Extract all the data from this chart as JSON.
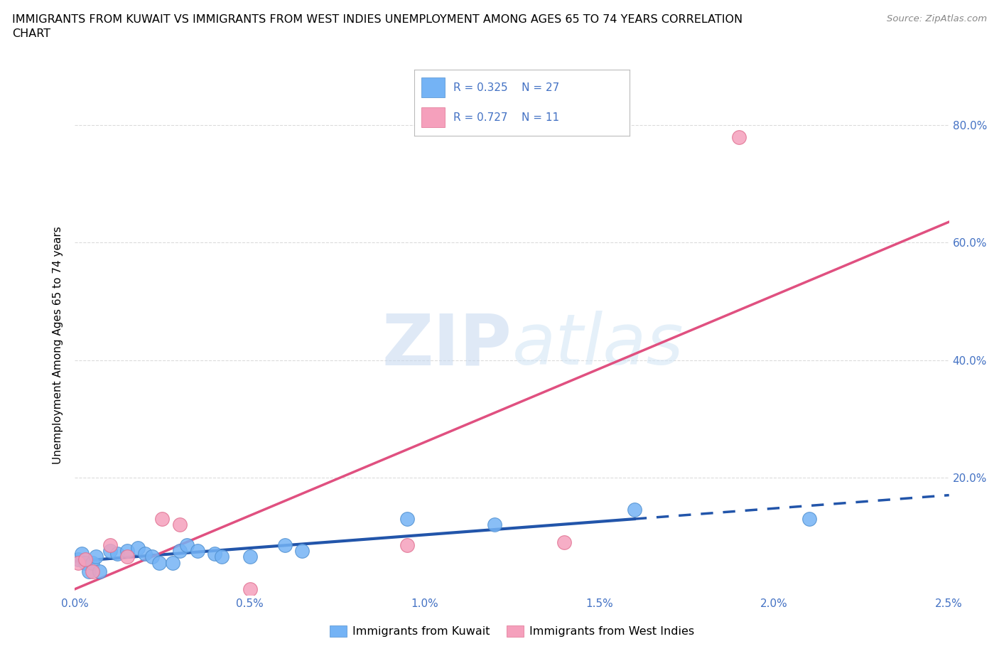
{
  "title_line1": "IMMIGRANTS FROM KUWAIT VS IMMIGRANTS FROM WEST INDIES UNEMPLOYMENT AMONG AGES 65 TO 74 YEARS CORRELATION",
  "title_line2": "CHART",
  "source": "Source: ZipAtlas.com",
  "ylabel": "Unemployment Among Ages 65 to 74 years",
  "xlim": [
    0.0,
    0.025
  ],
  "ylim": [
    0.0,
    0.85
  ],
  "xtick_vals": [
    0.0,
    0.005,
    0.01,
    0.015,
    0.02,
    0.025
  ],
  "xtick_labels": [
    "0.0%",
    "0.5%",
    "1.0%",
    "1.5%",
    "2.0%",
    "2.5%"
  ],
  "ytick_vals": [
    0.2,
    0.4,
    0.6,
    0.8
  ],
  "ytick_labels": [
    "20.0%",
    "40.0%",
    "60.0%",
    "80.0%"
  ],
  "kuwait_color": "#74B3F5",
  "kuwait_edge_color": "#5090D0",
  "west_indies_color": "#F5A0BC",
  "west_indies_edge_color": "#E07090",
  "kuwait_R": "0.325",
  "kuwait_N": "27",
  "west_indies_R": "0.727",
  "west_indies_N": "11",
  "watermark_text": "ZIPatlas",
  "kuwait_scatter_x": [
    0.0001,
    0.0002,
    0.0003,
    0.0004,
    0.0005,
    0.0006,
    0.0007,
    0.001,
    0.0012,
    0.0015,
    0.0018,
    0.002,
    0.0022,
    0.0024,
    0.0028,
    0.003,
    0.0032,
    0.0035,
    0.004,
    0.0042,
    0.005,
    0.006,
    0.0065,
    0.0095,
    0.012,
    0.016,
    0.021
  ],
  "kuwait_scatter_y": [
    0.06,
    0.07,
    0.055,
    0.04,
    0.055,
    0.065,
    0.04,
    0.075,
    0.07,
    0.075,
    0.08,
    0.07,
    0.065,
    0.055,
    0.055,
    0.075,
    0.085,
    0.075,
    0.07,
    0.065,
    0.065,
    0.085,
    0.075,
    0.13,
    0.12,
    0.145,
    0.13
  ],
  "west_indies_scatter_x": [
    0.0001,
    0.0003,
    0.0005,
    0.001,
    0.0015,
    0.0025,
    0.003,
    0.005,
    0.0095,
    0.014,
    0.019
  ],
  "west_indies_scatter_y": [
    0.055,
    0.06,
    0.04,
    0.085,
    0.065,
    0.13,
    0.12,
    0.01,
    0.085,
    0.09,
    0.78
  ],
  "kuwait_trendline_color": "#2255AA",
  "west_indies_trendline_color": "#E05080",
  "accent_color": "#4472C4",
  "background_color": "#ffffff",
  "grid_color": "#cccccc"
}
